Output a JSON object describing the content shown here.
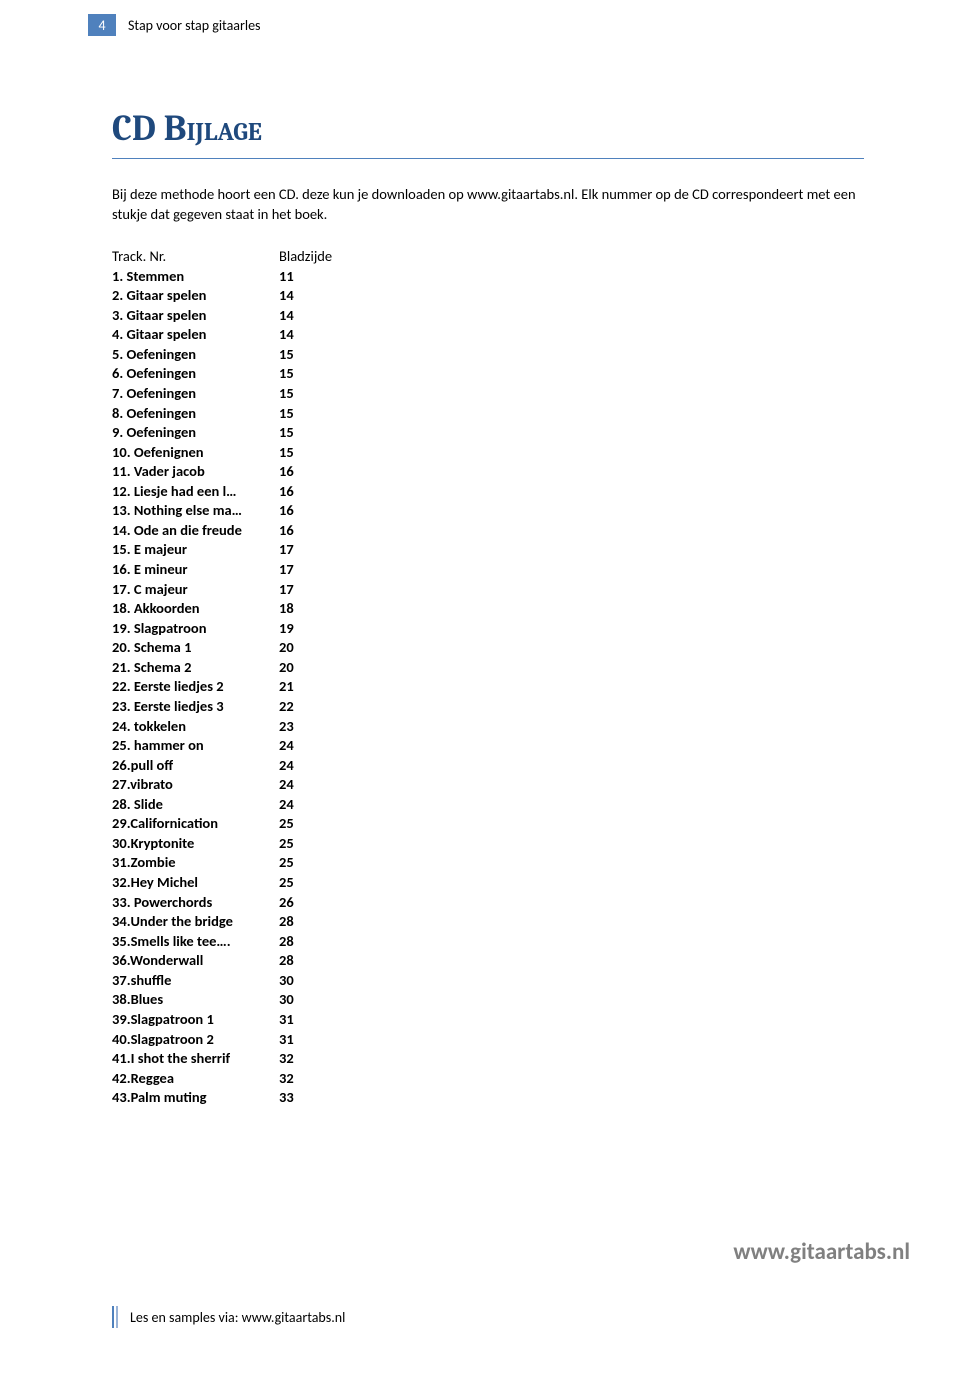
{
  "header": {
    "page_number": "4",
    "title": "Stap voor stap gitaarles"
  },
  "main_title": "CD Bijlage",
  "intro": "Bij deze methode hoort een CD. deze kun je downloaden op www.gitaartabs.nl. Elk nummer op de CD correspondeert met een stukje dat gegeven staat in het boek.",
  "table": {
    "head_col1": "Track. Nr.",
    "head_col2": "Bladzijde",
    "rows": [
      {
        "c1": "1.  Stemmen",
        "c2": "11"
      },
      {
        "c1": "2. Gitaar spelen",
        "c2": "14"
      },
      {
        "c1": "3. Gitaar spelen",
        "c2": "14"
      },
      {
        "c1": "4. Gitaar spelen",
        "c2": "14"
      },
      {
        "c1": "5. Oefeningen",
        "c2": "15"
      },
      {
        "c1": "6. Oefeningen",
        "c2": "15"
      },
      {
        "c1": "7. Oefeningen",
        "c2": "15"
      },
      {
        "c1": "8. Oefeningen",
        "c2": "15"
      },
      {
        "c1": "9. Oefeningen",
        "c2": "15"
      },
      {
        "c1": "10. Oefenignen",
        "c2": "15"
      },
      {
        "c1": "11. Vader jacob",
        "c2": "16"
      },
      {
        "c1": "12. Liesje had een l…",
        "c2": "16"
      },
      {
        "c1": "13. Nothing else ma…",
        "c2": "16"
      },
      {
        "c1": "14. Ode an die freude",
        "c2": "16"
      },
      {
        "c1": "15. E majeur",
        "c2": "17"
      },
      {
        "c1": "16. E mineur",
        "c2": "17"
      },
      {
        "c1": "17. C majeur",
        "c2": "17"
      },
      {
        "c1": "18. Akkoorden",
        "c2": "18"
      },
      {
        "c1": "19. Slagpatroon",
        "c2": "19"
      },
      {
        "c1": "20. Schema 1",
        "c2": "20"
      },
      {
        "c1": "21. Schema 2",
        "c2": "20"
      },
      {
        "c1": "22. Eerste liedjes 2",
        "c2": "21"
      },
      {
        "c1": "23. Eerste liedjes 3",
        "c2": "22"
      },
      {
        "c1": "24. tokkelen",
        "c2": "23"
      },
      {
        "c1": "25. hammer on",
        "c2": "24"
      },
      {
        "c1": "26.pull off",
        "c2": "24"
      },
      {
        "c1": "27.vibrato",
        "c2": "24"
      },
      {
        "c1": "28. Slide",
        "c2": "24"
      },
      {
        "c1": "29.Californication",
        "c2": "25"
      },
      {
        "c1": "30.Kryptonite",
        "c2": "25"
      },
      {
        "c1": "31.Zombie",
        "c2": "25"
      },
      {
        "c1": "32.Hey Michel",
        "c2": "25"
      },
      {
        "c1": "33. Powerchords",
        "c2": "26"
      },
      {
        "c1": "34.Under the bridge",
        "c2": "28"
      },
      {
        "c1": "35.Smells like tee….",
        "c2": "28"
      },
      {
        "c1": "36.Wonderwall",
        "c2": "28"
      },
      {
        "c1": "37.shuffle",
        "c2": "30"
      },
      {
        "c1": "38.Blues",
        "c2": "30"
      },
      {
        "c1": "39.Slagpatroon 1",
        "c2": "31"
      },
      {
        "c1": "40.Slagpatroon 2",
        "c2": "31"
      },
      {
        "c1": "41.I shot the sherrif",
        "c2": "32"
      },
      {
        "c1": "42.Reggea",
        "c2": "32"
      },
      {
        "c1": "43.Palm muting",
        "c2": "33"
      }
    ]
  },
  "website": "www.gitaartabs.nl",
  "footer": "Les en samples via:  www.gitaartabs.nl",
  "colors": {
    "accent": "#4f81bd",
    "title": "#1f497d",
    "grey": "#808080"
  }
}
